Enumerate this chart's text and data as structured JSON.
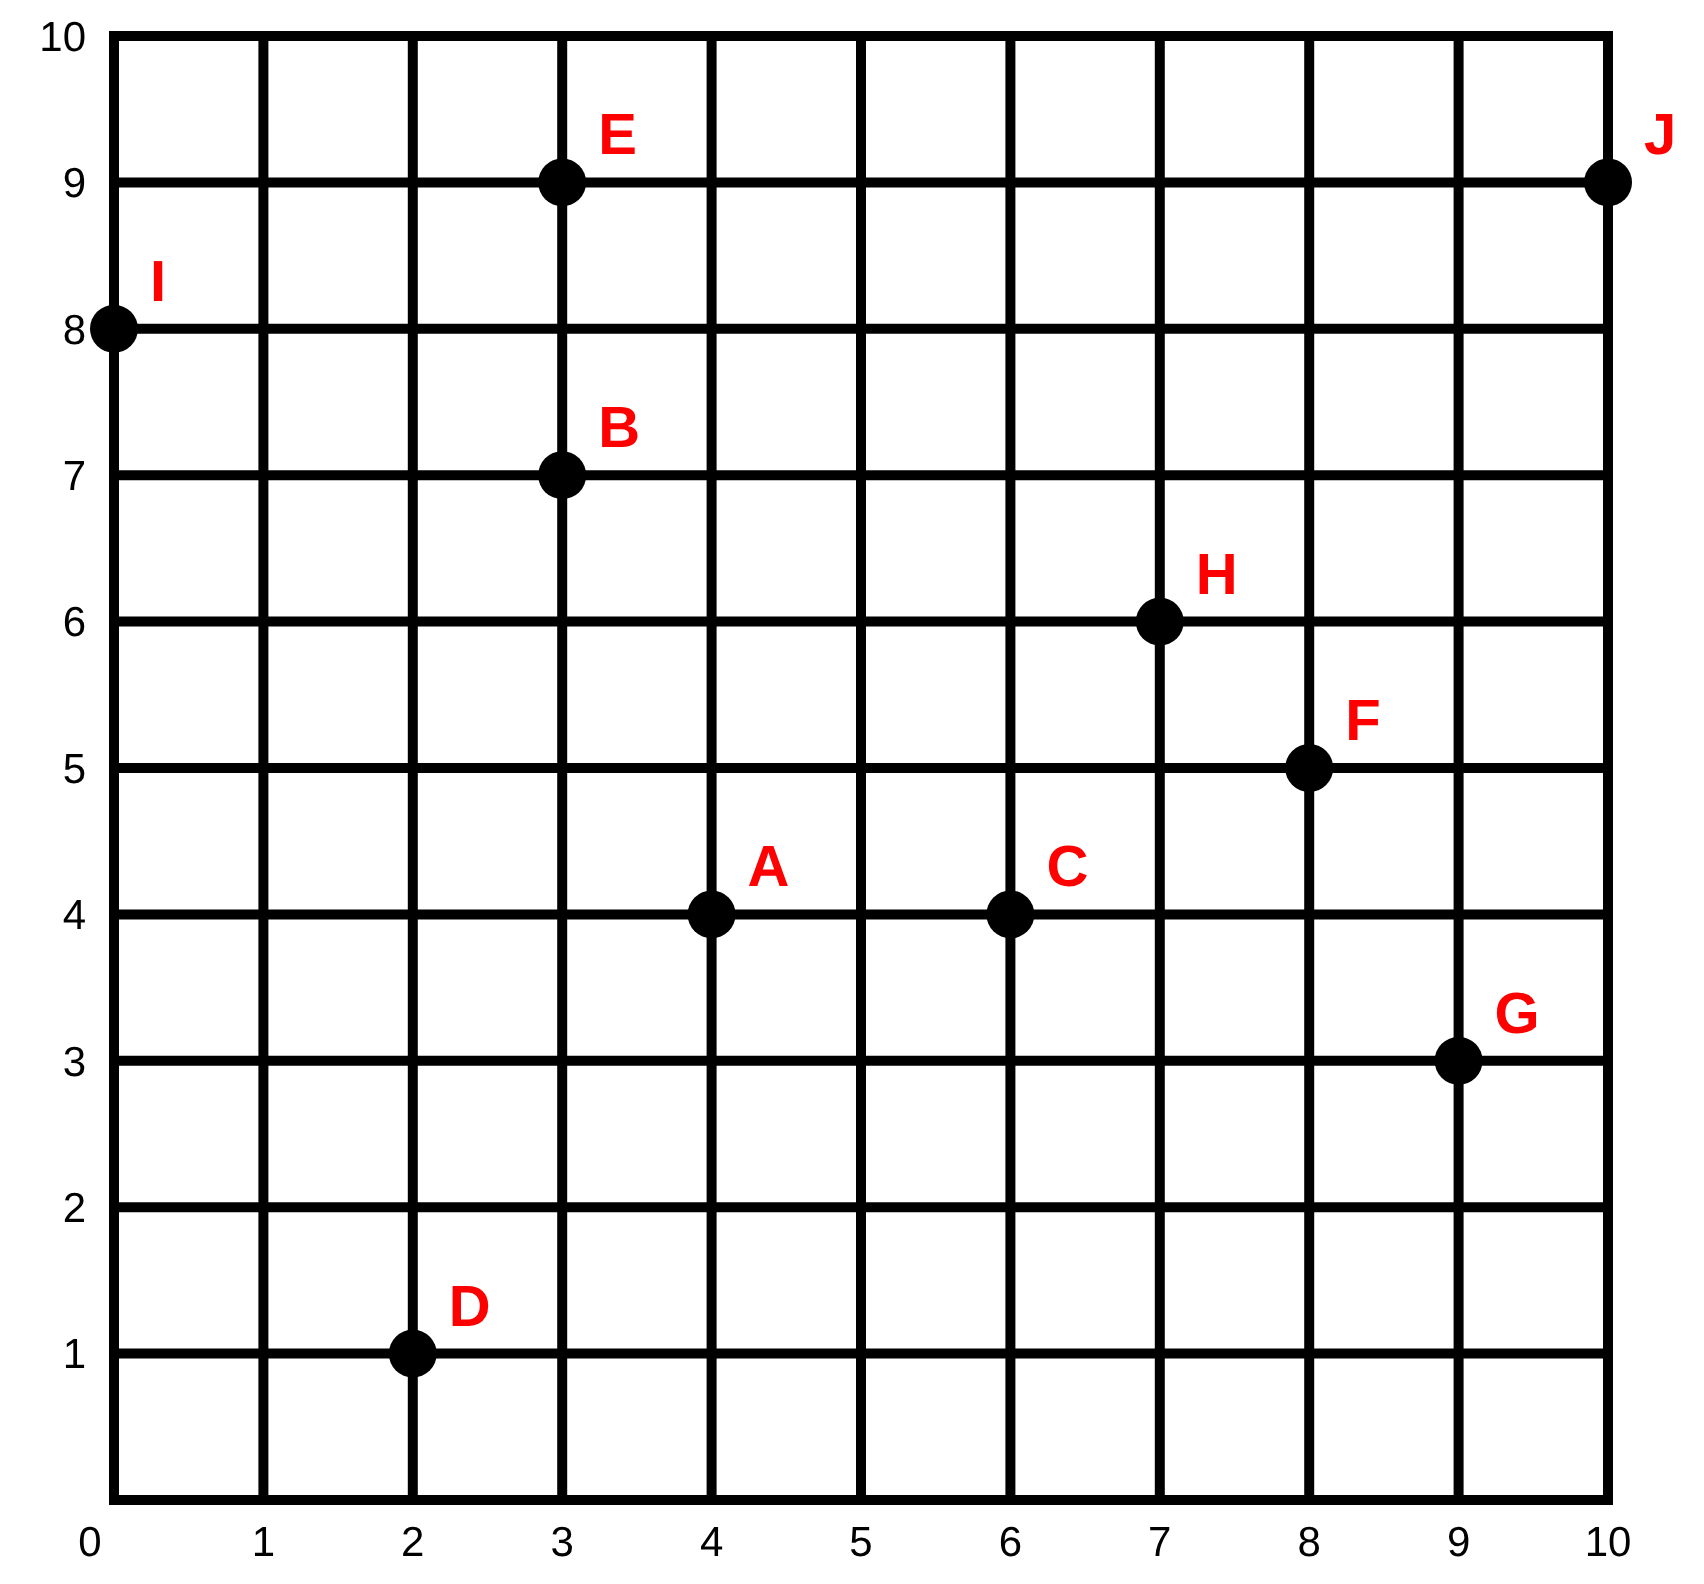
{
  "chart_data": {
    "type": "scatter",
    "x": [
      4,
      3,
      6,
      2,
      3,
      8,
      9,
      7,
      0,
      10
    ],
    "series": [
      {
        "color": "#000000",
        "values": [
          4,
          7,
          4,
          1,
          9,
          5,
          3,
          6,
          8,
          9
        ]
      }
    ],
    "xlim": [
      0,
      10
    ],
    "ylim": [
      0,
      10
    ],
    "xticks": [
      0,
      1,
      2,
      3,
      4,
      5,
      6,
      7,
      8,
      9,
      10
    ],
    "yticks": [
      {
        "value": 0,
        "label": null
      },
      1,
      2,
      3,
      4,
      5,
      6,
      7,
      8,
      9,
      10
    ],
    "grid": true,
    "marker": "circle",
    "annotations": [
      {
        "text": "A",
        "x": 4,
        "y": 4
      },
      {
        "text": "B",
        "x": 3,
        "y": 7
      },
      {
        "text": "C",
        "x": 6,
        "y": 4
      },
      {
        "text": "D",
        "x": 2,
        "y": 1
      },
      {
        "text": "E",
        "x": 3,
        "y": 9
      },
      {
        "text": "F",
        "x": 8,
        "y": 5
      },
      {
        "text": "G",
        "x": 9,
        "y": 3
      },
      {
        "text": "H",
        "x": 7,
        "y": 6
      },
      {
        "text": "I",
        "x": 0,
        "y": 8
      },
      {
        "text": "J",
        "x": 10,
        "y": 9
      }
    ]
  }
}
